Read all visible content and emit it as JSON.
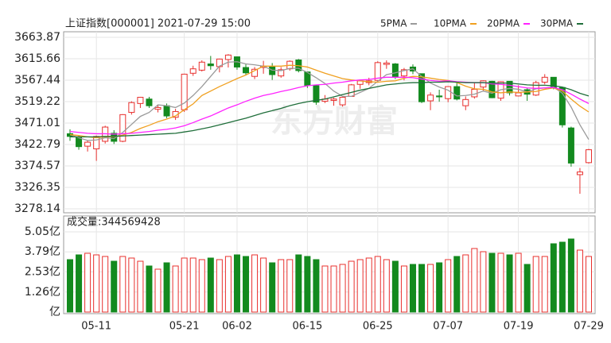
{
  "chart_data": [
    {
      "type": "candlestick",
      "title": "上证指数[000001] 2021-07-29 15:00",
      "watermark": "东方财富",
      "categories": [
        null,
        null,
        null,
        "05-11",
        null,
        null,
        null,
        null,
        null,
        null,
        null,
        null,
        null,
        "05-21",
        null,
        null,
        null,
        null,
        null,
        "06-02",
        null,
        null,
        null,
        null,
        null,
        null,
        null,
        "06-15",
        null,
        null,
        null,
        null,
        null,
        null,
        null,
        "06-25",
        null,
        null,
        null,
        null,
        null,
        null,
        null,
        "07-07",
        null,
        null,
        null,
        null,
        null,
        null,
        null,
        "07-19",
        null,
        null,
        null,
        null,
        null,
        null,
        null,
        "07-29"
      ],
      "open": [
        3447,
        3438,
        3419,
        3413,
        3430,
        3448,
        3430,
        3495,
        3515,
        3525,
        3502,
        3510,
        3484,
        3501,
        3583,
        3590,
        3604,
        3598,
        3614,
        3620,
        3596,
        3576,
        3596,
        3598,
        3577,
        3593,
        3613,
        3586,
        3555,
        3520,
        3522,
        3512,
        3531,
        3558,
        3562,
        3567,
        3603,
        3604,
        3577,
        3597,
        3582,
        3521,
        3532,
        3526,
        3553,
        3510,
        3530,
        3552,
        3565,
        3527,
        3565,
        3532,
        3546,
        3534,
        3563,
        3574,
        3551,
        3460,
        3355,
        3382
      ],
      "high": [
        3457,
        3443,
        3432,
        3443,
        3465,
        3455,
        3491,
        3520,
        3530,
        3530,
        3512,
        3515,
        3503,
        3582,
        3600,
        3612,
        3622,
        3616,
        3626,
        3620,
        3603,
        3597,
        3611,
        3606,
        3597,
        3612,
        3615,
        3587,
        3556,
        3534,
        3528,
        3531,
        3559,
        3566,
        3573,
        3610,
        3612,
        3606,
        3595,
        3603,
        3582,
        3540,
        3546,
        3554,
        3562,
        3531,
        3561,
        3567,
        3566,
        3565,
        3565,
        3556,
        3549,
        3566,
        3581,
        3574,
        3552,
        3463,
        3370,
        3413
      ],
      "low": [
        3431,
        3411,
        3407,
        3386,
        3425,
        3424,
        3428,
        3490,
        3505,
        3505,
        3495,
        3482,
        3478,
        3496,
        3577,
        3587,
        3591,
        3585,
        3596,
        3591,
        3579,
        3570,
        3582,
        3568,
        3573,
        3589,
        3585,
        3550,
        3512,
        3516,
        3510,
        3508,
        3531,
        3548,
        3556,
        3565,
        3593,
        3570,
        3567,
        3581,
        3516,
        3500,
        3519,
        3518,
        3522,
        3500,
        3526,
        3542,
        3527,
        3521,
        3533,
        3531,
        3521,
        3532,
        3558,
        3547,
        3461,
        3373,
        3312,
        3380
      ],
      "close": [
        3441,
        3418,
        3428,
        3441,
        3462,
        3430,
        3490,
        3517,
        3529,
        3510,
        3506,
        3487,
        3497,
        3581,
        3593,
        3608,
        3600,
        3615,
        3624,
        3597,
        3584,
        3592,
        3599,
        3580,
        3591,
        3610,
        3589,
        3556,
        3518,
        3525,
        3525,
        3529,
        3557,
        3566,
        3566,
        3607,
        3606,
        3574,
        3591,
        3588,
        3519,
        3534,
        3530,
        3553,
        3525,
        3524,
        3547,
        3566,
        3528,
        3564,
        3539,
        3539,
        3536,
        3562,
        3574,
        3550,
        3467,
        3381,
        3361,
        3411
      ],
      "up_color": "#e8302e",
      "down_color": "#138a1e",
      "series": [
        {
          "name": "5PMA",
          "color": "#9a9a9a",
          "values": [
            3445,
            3438,
            3432,
            3433,
            3438,
            3436,
            3450,
            3468,
            3486,
            3495,
            3512,
            3510,
            3506,
            3516,
            3533,
            3553,
            3576,
            3599,
            3608,
            3609,
            3604,
            3602,
            3599,
            3590,
            3589,
            3594,
            3594,
            3585,
            3573,
            3560,
            3543,
            3531,
            3531,
            3540,
            3549,
            3565,
            3580,
            3584,
            3589,
            3593,
            3576,
            3561,
            3552,
            3545,
            3532,
            3533,
            3536,
            3543,
            3538,
            3546,
            3549,
            3547,
            3541,
            3548,
            3550,
            3552,
            3538,
            3507,
            3467,
            3434
          ]
        },
        {
          "name": "10PMA",
          "color": "#f0a020",
          "values": [
            3445,
            3443,
            3440,
            3438,
            3440,
            3440,
            3444,
            3450,
            3459,
            3466,
            3474,
            3480,
            3487,
            3501,
            3514,
            3533,
            3543,
            3553,
            3562,
            3571,
            3579,
            3589,
            3599,
            3599,
            3599,
            3601,
            3600,
            3597,
            3590,
            3583,
            3577,
            3571,
            3568,
            3566,
            3564,
            3563,
            3565,
            3566,
            3572,
            3576,
            3575,
            3572,
            3569,
            3567,
            3562,
            3554,
            3548,
            3547,
            3541,
            3539,
            3541,
            3540,
            3541,
            3542,
            3547,
            3550,
            3543,
            3525,
            3509,
            3496
          ]
        },
        {
          "name": "20PMA",
          "color": "#ff22ff",
          "values": [
            3452,
            3450,
            3448,
            3447,
            3447,
            3446,
            3447,
            3448,
            3450,
            3452,
            3455,
            3457,
            3460,
            3465,
            3472,
            3480,
            3487,
            3496,
            3505,
            3512,
            3520,
            3527,
            3533,
            3537,
            3542,
            3546,
            3551,
            3555,
            3557,
            3558,
            3561,
            3563,
            3566,
            3568,
            3569,
            3572,
            3574,
            3574,
            3574,
            3573,
            3570,
            3567,
            3565,
            3566,
            3564,
            3563,
            3562,
            3562,
            3559,
            3558,
            3556,
            3553,
            3550,
            3549,
            3550,
            3551,
            3546,
            3536,
            3525,
            3515
          ]
        },
        {
          "name": "30PMA",
          "color": "#1f6e3a",
          "values": [
            3440,
            3440,
            3440,
            3440,
            3441,
            3441,
            3442,
            3443,
            3444,
            3445,
            3446,
            3447,
            3448,
            3451,
            3454,
            3458,
            3462,
            3467,
            3472,
            3477,
            3482,
            3488,
            3494,
            3499,
            3504,
            3510,
            3515,
            3519,
            3522,
            3525,
            3530,
            3535,
            3540,
            3545,
            3549,
            3553,
            3557,
            3559,
            3561,
            3562,
            3562,
            3563,
            3563,
            3564,
            3563,
            3562,
            3562,
            3562,
            3561,
            3561,
            3561,
            3559,
            3557,
            3556,
            3556,
            3555,
            3552,
            3546,
            3538,
            3532
          ]
        }
      ],
      "ylim": [
        3278.14,
        3663.87
      ],
      "yticks": [
        3663.87,
        3615.66,
        3567.44,
        3519.22,
        3471.01,
        3422.79,
        3374.57,
        3326.35,
        3278.14
      ],
      "grid": true
    },
    {
      "type": "bar",
      "title": "成交量:344569428",
      "up_color": "#e8302e",
      "down_color": "#138a1e",
      "values": [
        3.3,
        3.6,
        3.7,
        3.6,
        3.5,
        3.2,
        3.5,
        3.4,
        3.2,
        2.9,
        2.7,
        3.1,
        2.9,
        3.4,
        3.4,
        3.3,
        3.4,
        3.3,
        3.5,
        3.6,
        3.5,
        3.6,
        3.4,
        3.1,
        3.3,
        3.3,
        3.6,
        3.5,
        3.3,
        2.9,
        2.9,
        3.0,
        3.2,
        3.3,
        3.4,
        3.5,
        3.3,
        3.2,
        2.9,
        3.0,
        3.0,
        3.0,
        3.1,
        3.3,
        3.5,
        3.6,
        4.0,
        3.8,
        3.7,
        3.7,
        3.6,
        3.7,
        3.0,
        3.5,
        3.5,
        4.3,
        4.4,
        4.6,
        3.9,
        3.5
      ],
      "ylim": [
        0,
        5.05
      ],
      "yticks": [
        {
          "value": 5.05,
          "label": "5.05亿"
        },
        {
          "value": 3.79,
          "label": "3.79亿"
        },
        {
          "value": 2.53,
          "label": "2.53亿"
        },
        {
          "value": 1.26,
          "label": "1.26亿"
        },
        {
          "value": 0,
          "label": "亿"
        }
      ],
      "grid": true
    }
  ]
}
